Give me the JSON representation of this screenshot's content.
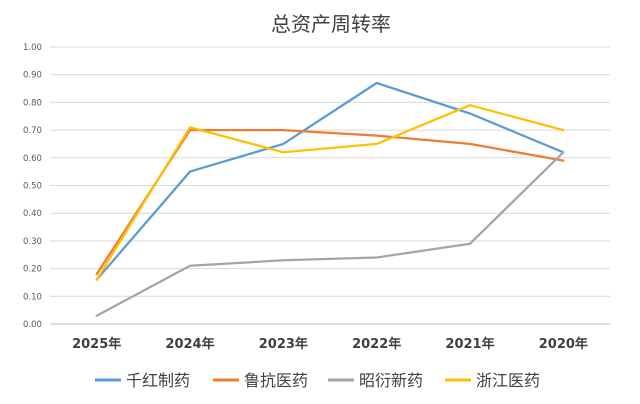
{
  "chart_data": {
    "type": "line",
    "title": "总资产周转率",
    "xlabel": "",
    "ylabel": "",
    "categories": [
      "2025年",
      "2024年",
      "2023年",
      "2022年",
      "2021年",
      "2020年"
    ],
    "ylim": [
      0,
      1.0
    ],
    "yticks": [
      "0.00",
      "0.10",
      "0.20",
      "0.30",
      "0.40",
      "0.50",
      "0.60",
      "0.70",
      "0.80",
      "0.90",
      "1.00"
    ],
    "grid": true,
    "legend_position": "bottom",
    "series": [
      {
        "name": "千红制药",
        "color": "#5b9bd5",
        "values": [
          0.16,
          0.55,
          0.65,
          0.87,
          0.76,
          0.62
        ]
      },
      {
        "name": "鲁抗医药",
        "color": "#ed7d31",
        "values": [
          0.18,
          0.7,
          0.7,
          0.68,
          0.65,
          0.59
        ]
      },
      {
        "name": "昭衍新药",
        "color": "#a5a5a5",
        "values": [
          0.03,
          0.21,
          0.23,
          0.24,
          0.29,
          0.62
        ]
      },
      {
        "name": "浙江医药",
        "color": "#ffc000",
        "values": [
          0.16,
          0.71,
          0.62,
          0.65,
          0.79,
          0.7
        ]
      }
    ]
  }
}
